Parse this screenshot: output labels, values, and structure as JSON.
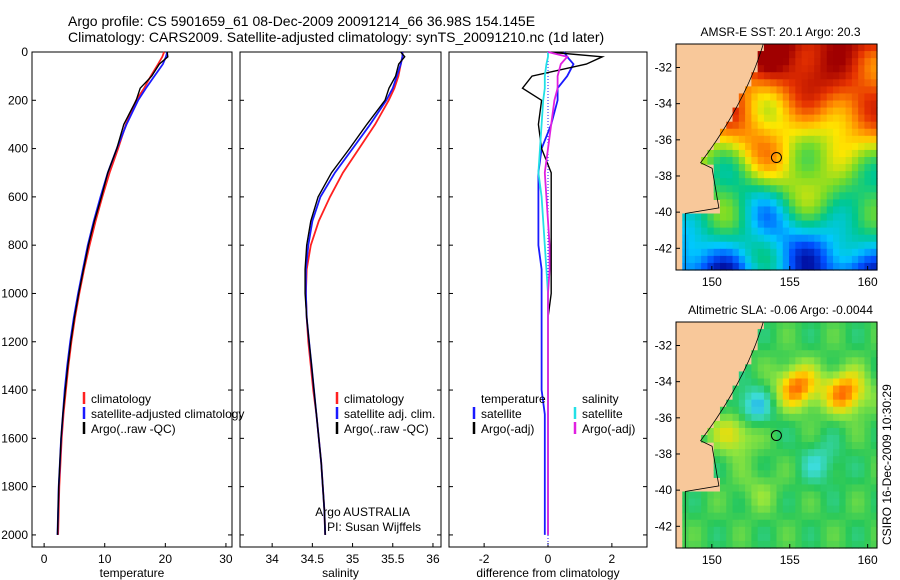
{
  "header": {
    "line1": "Argo profile: CS 5901659_61 08-Dec-2009 20091214_66 36.98S 154.145E",
    "line2": "Climatology: CARS2009. Satellite-adjusted climatology: synTS_20091210.nc (1d later)"
  },
  "side_label": "CSIRO 16-Dec-2009 10:30:29",
  "colors": {
    "red": "#ff2020",
    "blue": "#1a1aff",
    "black": "#000000",
    "cyan": "#22e0e6",
    "magenta": "#e020e0",
    "land": "#f8c89a"
  },
  "chart_data": [
    {
      "type": "line",
      "xlabel": "temperature",
      "ylabel": "",
      "xlim": [
        -2,
        31
      ],
      "ylim": [
        2050,
        0
      ],
      "xticks": [
        "0",
        "10",
        "20",
        "30"
      ],
      "yticks": [
        "0",
        "200",
        "400",
        "600",
        "800",
        "1000",
        "1200",
        "1400",
        "1600",
        "1800",
        "2000"
      ],
      "legend": [
        "climatology",
        "satellite-adjusted climatology",
        "Argo(..raw -QC)"
      ],
      "depth": [
        0,
        20,
        50,
        100,
        150,
        200,
        300,
        400,
        500,
        600,
        700,
        800,
        900,
        1000,
        1100,
        1200,
        1300,
        1400,
        1500,
        1600,
        1700,
        1800,
        1900,
        2000
      ],
      "series": [
        {
          "name": "climatology",
          "color": "red",
          "values": [
            19.8,
            19.5,
            18.8,
            17.6,
            16.5,
            15.2,
            13.5,
            12.2,
            10.8,
            9.6,
            8.5,
            7.5,
            6.6,
            5.8,
            5.1,
            4.5,
            4.0,
            3.6,
            3.2,
            2.9,
            2.7,
            2.5,
            2.4,
            2.3
          ]
        },
        {
          "name": "satellite-adjusted climatology",
          "color": "blue",
          "values": [
            20.3,
            20.1,
            19.6,
            18.2,
            16.8,
            15.5,
            13.6,
            12.0,
            10.5,
            9.3,
            8.2,
            7.2,
            6.4,
            5.6,
            4.9,
            4.3,
            3.8,
            3.4,
            3.1,
            2.8,
            2.6,
            2.4,
            2.3,
            2.2
          ]
        },
        {
          "name": "Argo(..raw -QC)",
          "color": "black",
          "values": [
            20.3,
            20.0,
            19.3,
            17.5,
            16.2,
            15.0,
            13.3,
            11.9,
            10.6,
            9.4,
            8.3,
            7.3,
            6.5,
            5.7,
            5.0,
            4.4,
            3.9,
            3.5,
            3.1,
            2.8,
            2.6,
            2.4,
            2.3,
            2.2
          ]
        }
      ]
    },
    {
      "type": "line",
      "xlabel": "salinity",
      "ylabel": "",
      "xlim": [
        33.6,
        36.1
      ],
      "ylim": [
        2050,
        0
      ],
      "xticks": [
        "34",
        "34.5",
        "35",
        "35.5",
        "36"
      ],
      "legend": [
        "climatology",
        "satellite adj. clim.",
        "Argo(..raw -QC)"
      ],
      "depth": [
        0,
        20,
        50,
        100,
        150,
        200,
        300,
        400,
        500,
        600,
        700,
        800,
        900,
        1000,
        1100,
        1200,
        1300,
        1400,
        1500,
        1600,
        1700,
        1800,
        1900,
        2000
      ],
      "series": [
        {
          "name": "climatology",
          "color": "red",
          "values": [
            35.62,
            35.62,
            35.6,
            35.57,
            35.52,
            35.45,
            35.28,
            35.08,
            34.88,
            34.72,
            34.58,
            34.48,
            34.43,
            34.42,
            34.43,
            34.45,
            34.48,
            34.51,
            34.55,
            34.58,
            34.61,
            34.63,
            34.65,
            34.66
          ]
        },
        {
          "name": "satellite adj. clim.",
          "color": "blue",
          "values": [
            35.62,
            35.62,
            35.6,
            35.55,
            35.5,
            35.42,
            35.22,
            35.0,
            34.78,
            34.6,
            34.5,
            34.45,
            34.42,
            34.42,
            34.43,
            34.46,
            34.49,
            34.52,
            34.55,
            34.58,
            34.61,
            34.63,
            34.65,
            34.66
          ]
        },
        {
          "name": "Argo(..raw -QC)",
          "color": "black",
          "values": [
            35.6,
            35.64,
            35.58,
            35.53,
            35.46,
            35.4,
            35.18,
            34.96,
            34.74,
            34.57,
            34.48,
            34.43,
            34.41,
            34.41,
            34.43,
            34.46,
            34.49,
            34.52,
            34.55,
            34.58,
            34.61,
            34.63,
            34.65,
            34.66
          ]
        }
      ]
    },
    {
      "type": "line",
      "xlabel": "difference from climatology",
      "ylabel": "",
      "xlim": [
        -3.1,
        3.1
      ],
      "ylim": [
        2050,
        0
      ],
      "xticks": [
        "-2",
        "0",
        "2"
      ],
      "legend_left_title": "temperature",
      "legend_right_title": "salinity",
      "legend": [
        "satellite",
        "Argo(-adj)",
        "satellite",
        "Argo(-adj)"
      ],
      "depth": [
        0,
        20,
        50,
        100,
        150,
        200,
        300,
        400,
        500,
        600,
        700,
        800,
        900,
        1000,
        1100,
        1200,
        1300,
        1400,
        1500,
        1600,
        1700,
        1800,
        1900,
        2000
      ],
      "series": [
        {
          "name": "satellite",
          "group": "temperature",
          "color": "blue",
          "values": [
            0.5,
            0.6,
            0.8,
            0.6,
            0.3,
            0.3,
            0.1,
            -0.2,
            -0.3,
            -0.3,
            -0.3,
            -0.3,
            -0.2,
            -0.2,
            -0.2,
            -0.2,
            -0.2,
            -0.2,
            -0.1,
            -0.1,
            -0.1,
            -0.1,
            -0.1,
            -0.1
          ]
        },
        {
          "name": "Argo(-adj)",
          "group": "temperature",
          "color": "black",
          "values": [
            0.0,
            1.7,
            1.2,
            -0.5,
            -0.8,
            -0.2,
            -0.3,
            -0.2,
            0.1,
            0.1,
            0.1,
            0.1,
            0.1,
            0.1,
            0.0,
            0.0,
            0.0,
            0.0,
            0.0,
            0.0,
            0.0,
            0.0,
            0.0,
            0.0
          ]
        },
        {
          "name": "satellite",
          "group": "salinity",
          "color": "cyan",
          "values": [
            0.0,
            0.0,
            -0.05,
            -0.1,
            -0.1,
            -0.15,
            -0.2,
            -0.25,
            -0.3,
            -0.2,
            -0.15,
            -0.1,
            -0.05,
            0.0,
            0.0,
            0.0,
            0.0,
            0.0,
            0.0,
            0.0,
            0.0,
            0.0,
            0.0,
            0.0
          ]
        },
        {
          "name": "Argo(-adj)",
          "group": "salinity",
          "color": "magenta",
          "values": [
            0.0,
            0.6,
            0.4,
            0.3,
            0.3,
            0.2,
            0.1,
            0.0,
            -0.1,
            -0.05,
            0.0,
            0.05,
            0.05,
            0.0,
            0.0,
            0.0,
            0.0,
            0.0,
            0.0,
            0.0,
            0.0,
            0.0,
            0.0,
            0.0
          ]
        }
      ]
    },
    {
      "type": "heatmap",
      "title": "AMSR-E SST: 20.1 Argo: 20.3",
      "xlim": [
        147.7,
        160.6
      ],
      "ylim": [
        -43.2,
        -30.7
      ],
      "xticks": [
        "150",
        "155",
        "160"
      ],
      "yticks": [
        "-32",
        "-34",
        "-36",
        "-38",
        "-40",
        "-42"
      ],
      "marker": {
        "lon": 154.145,
        "lat": -36.98
      }
    },
    {
      "type": "heatmap",
      "title": "Altimetric SLA: -0.06 Argo: -0.0044",
      "xlim": [
        147.7,
        160.6
      ],
      "ylim": [
        -43.2,
        -30.7
      ],
      "xticks": [
        "150",
        "155",
        "160"
      ],
      "yticks": [
        "-32",
        "-34",
        "-36",
        "-38",
        "-40",
        "-42"
      ],
      "marker": {
        "lon": 154.145,
        "lat": -36.98
      }
    }
  ]
}
